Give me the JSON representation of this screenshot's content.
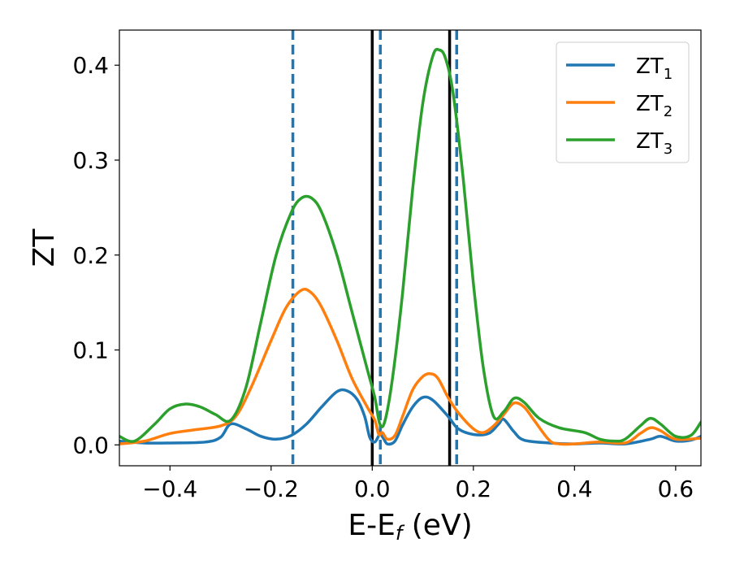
{
  "chart_data": {
    "type": "line",
    "xlabel": {
      "main": "E-E",
      "sub": "f",
      "suffix": " (eV)"
    },
    "ylabel": "ZT",
    "xlim": [
      -0.5,
      0.65
    ],
    "ylim": [
      -0.022,
      0.437
    ],
    "x_ticks": [
      {
        "value": -0.4,
        "label": "−0.4"
      },
      {
        "value": -0.2,
        "label": "−0.2"
      },
      {
        "value": 0.0,
        "label": "0.0"
      },
      {
        "value": 0.2,
        "label": "0.2"
      },
      {
        "value": 0.4,
        "label": "0.4"
      },
      {
        "value": 0.6,
        "label": "0.6"
      }
    ],
    "y_ticks": [
      {
        "value": 0.0,
        "label": "0.0"
      },
      {
        "value": 0.1,
        "label": "0.1"
      },
      {
        "value": 0.2,
        "label": "0.2"
      },
      {
        "value": 0.3,
        "label": "0.3"
      },
      {
        "value": 0.4,
        "label": "0.4"
      }
    ],
    "grid": false,
    "legend_position": "top-right",
    "vlines_solid": [
      0.0,
      0.153
    ],
    "vlines_dashed": [
      -0.157,
      0.016,
      0.167
    ],
    "solid_line_color": "#000000",
    "dashed_line_color": "#1f77b4",
    "series": [
      {
        "name": "ZT",
        "sub": "1",
        "color": "#1f77b4",
        "points": [
          [
            -0.5,
            0.004
          ],
          [
            -0.45,
            0.002
          ],
          [
            -0.4,
            0.002
          ],
          [
            -0.33,
            0.003
          ],
          [
            -0.3,
            0.008
          ],
          [
            -0.28,
            0.022
          ],
          [
            -0.25,
            0.017
          ],
          [
            -0.22,
            0.009
          ],
          [
            -0.19,
            0.006
          ],
          [
            -0.16,
            0.01
          ],
          [
            -0.13,
            0.022
          ],
          [
            -0.1,
            0.04
          ],
          [
            -0.07,
            0.056
          ],
          [
            -0.05,
            0.057
          ],
          [
            -0.03,
            0.048
          ],
          [
            -0.015,
            0.03
          ],
          [
            -0.005,
            0.008
          ],
          [
            0.005,
            0.003
          ],
          [
            0.015,
            0.011
          ],
          [
            0.022,
            0.007
          ],
          [
            0.03,
            0.001
          ],
          [
            0.045,
            0.004
          ],
          [
            0.06,
            0.021
          ],
          [
            0.08,
            0.04
          ],
          [
            0.1,
            0.05
          ],
          [
            0.12,
            0.047
          ],
          [
            0.15,
            0.03
          ],
          [
            0.17,
            0.017
          ],
          [
            0.2,
            0.011
          ],
          [
            0.23,
            0.012
          ],
          [
            0.25,
            0.022
          ],
          [
            0.26,
            0.027
          ],
          [
            0.28,
            0.014
          ],
          [
            0.3,
            0.005
          ],
          [
            0.35,
            0.002
          ],
          [
            0.4,
            0.001
          ],
          [
            0.45,
            0.002
          ],
          [
            0.5,
            0.001
          ],
          [
            0.55,
            0.006
          ],
          [
            0.57,
            0.009
          ],
          [
            0.6,
            0.004
          ],
          [
            0.63,
            0.005
          ],
          [
            0.65,
            0.009
          ]
        ]
      },
      {
        "name": "ZT",
        "sub": "2",
        "color": "#ff7f0e",
        "points": [
          [
            -0.5,
            0.001
          ],
          [
            -0.45,
            0.004
          ],
          [
            -0.4,
            0.012
          ],
          [
            -0.35,
            0.016
          ],
          [
            -0.3,
            0.02
          ],
          [
            -0.27,
            0.03
          ],
          [
            -0.24,
            0.06
          ],
          [
            -0.2,
            0.11
          ],
          [
            -0.17,
            0.145
          ],
          [
            -0.14,
            0.163
          ],
          [
            -0.12,
            0.16
          ],
          [
            -0.1,
            0.145
          ],
          [
            -0.07,
            0.11
          ],
          [
            -0.04,
            0.07
          ],
          [
            -0.01,
            0.04
          ],
          [
            0.005,
            0.026
          ],
          [
            0.013,
            0.011
          ],
          [
            0.02,
            0.013
          ],
          [
            0.03,
            0.006
          ],
          [
            0.045,
            0.01
          ],
          [
            0.06,
            0.03
          ],
          [
            0.08,
            0.058
          ],
          [
            0.1,
            0.072
          ],
          [
            0.115,
            0.075
          ],
          [
            0.13,
            0.07
          ],
          [
            0.15,
            0.05
          ],
          [
            0.17,
            0.034
          ],
          [
            0.2,
            0.017
          ],
          [
            0.22,
            0.013
          ],
          [
            0.24,
            0.02
          ],
          [
            0.26,
            0.032
          ],
          [
            0.28,
            0.044
          ],
          [
            0.3,
            0.04
          ],
          [
            0.32,
            0.026
          ],
          [
            0.35,
            0.005
          ],
          [
            0.37,
            0.001
          ],
          [
            0.4,
            0.001
          ],
          [
            0.45,
            0.003
          ],
          [
            0.5,
            0.002
          ],
          [
            0.53,
            0.012
          ],
          [
            0.55,
            0.018
          ],
          [
            0.57,
            0.015
          ],
          [
            0.6,
            0.006
          ],
          [
            0.65,
            0.007
          ]
        ]
      },
      {
        "name": "ZT",
        "sub": "3",
        "color": "#2ca02c",
        "points": [
          [
            -0.5,
            0.009
          ],
          [
            -0.47,
            0.004
          ],
          [
            -0.43,
            0.022
          ],
          [
            -0.4,
            0.038
          ],
          [
            -0.37,
            0.043
          ],
          [
            -0.34,
            0.04
          ],
          [
            -0.31,
            0.032
          ],
          [
            -0.28,
            0.026
          ],
          [
            -0.25,
            0.06
          ],
          [
            -0.22,
            0.13
          ],
          [
            -0.19,
            0.2
          ],
          [
            -0.16,
            0.245
          ],
          [
            -0.14,
            0.26
          ],
          [
            -0.12,
            0.26
          ],
          [
            -0.1,
            0.245
          ],
          [
            -0.07,
            0.2
          ],
          [
            -0.04,
            0.14
          ],
          [
            -0.01,
            0.08
          ],
          [
            0.005,
            0.05
          ],
          [
            0.015,
            0.022
          ],
          [
            0.025,
            0.025
          ],
          [
            0.04,
            0.07
          ],
          [
            0.06,
            0.16
          ],
          [
            0.08,
            0.27
          ],
          [
            0.1,
            0.36
          ],
          [
            0.12,
            0.41
          ],
          [
            0.133,
            0.416
          ],
          [
            0.145,
            0.407
          ],
          [
            0.16,
            0.37
          ],
          [
            0.18,
            0.28
          ],
          [
            0.2,
            0.17
          ],
          [
            0.22,
            0.08
          ],
          [
            0.24,
            0.03
          ],
          [
            0.26,
            0.035
          ],
          [
            0.28,
            0.049
          ],
          [
            0.3,
            0.045
          ],
          [
            0.33,
            0.028
          ],
          [
            0.37,
            0.018
          ],
          [
            0.42,
            0.013
          ],
          [
            0.45,
            0.006
          ],
          [
            0.48,
            0.004
          ],
          [
            0.5,
            0.006
          ],
          [
            0.53,
            0.02
          ],
          [
            0.55,
            0.028
          ],
          [
            0.57,
            0.022
          ],
          [
            0.6,
            0.009
          ],
          [
            0.63,
            0.01
          ],
          [
            0.65,
            0.024
          ]
        ]
      }
    ]
  }
}
